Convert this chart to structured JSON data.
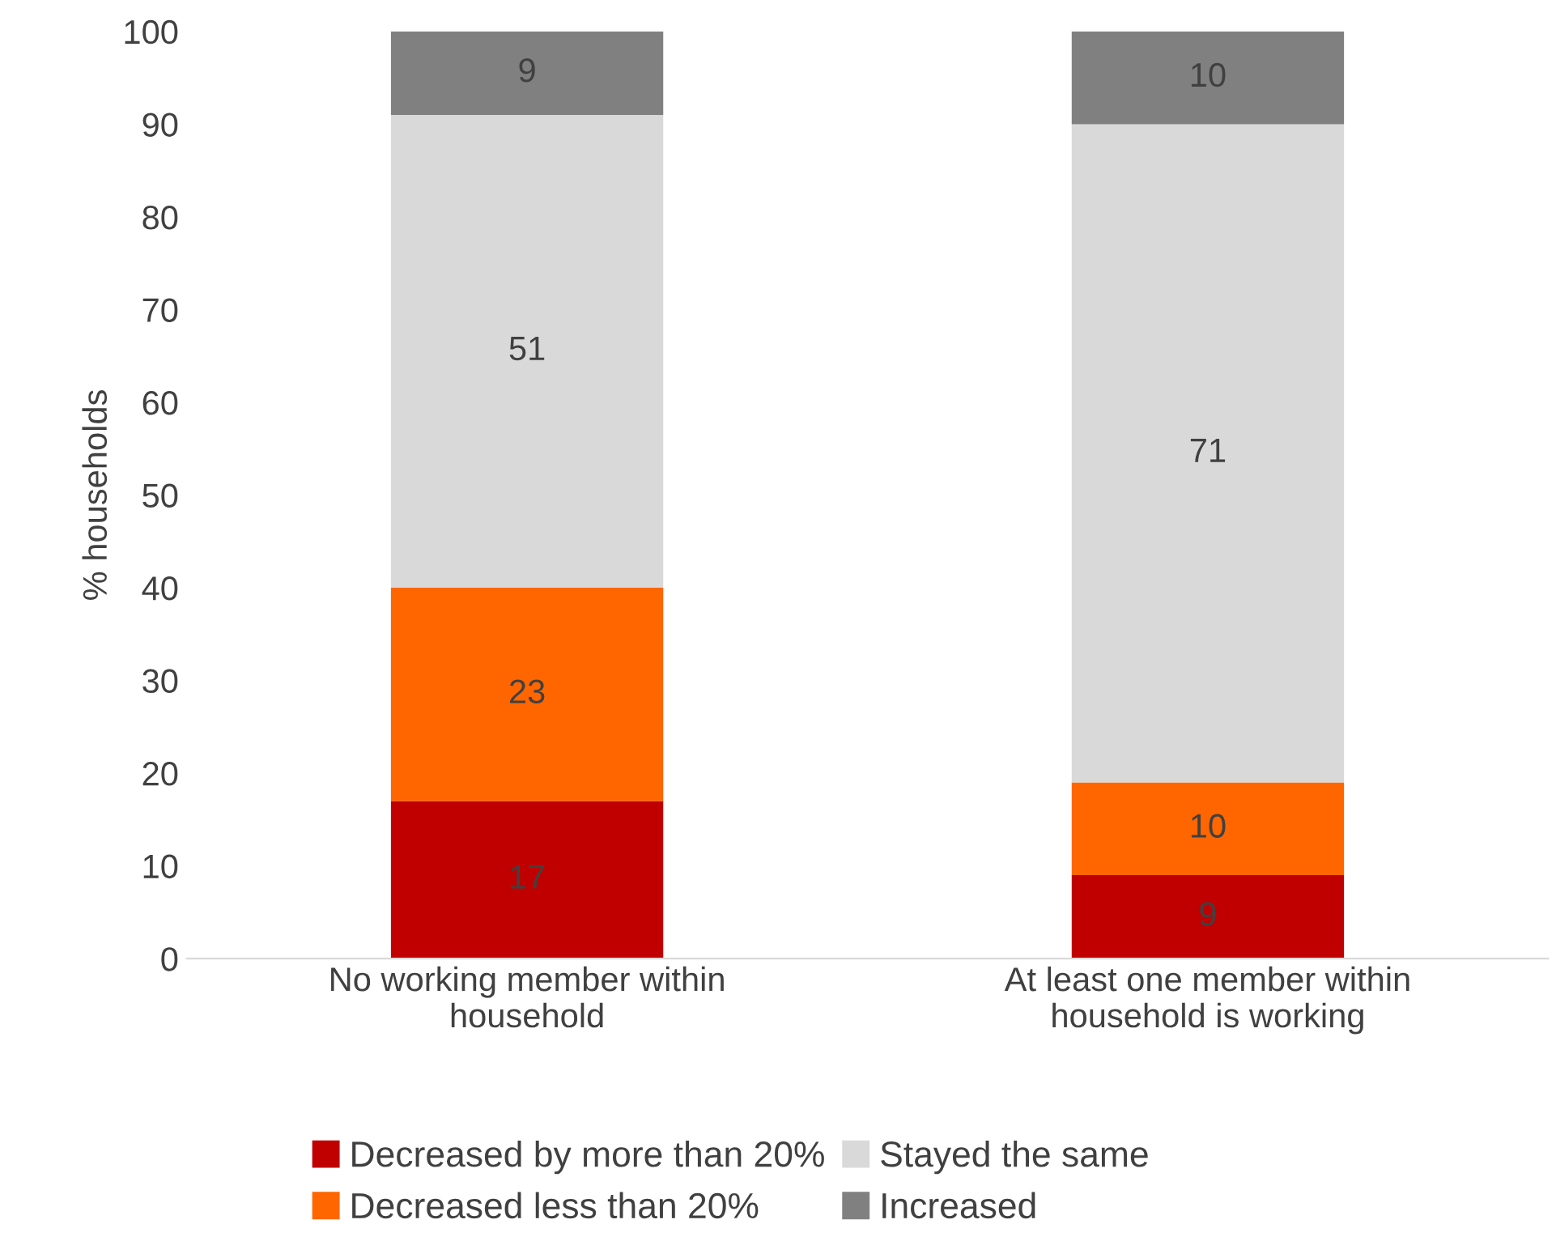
{
  "chart_data": {
    "type": "bar",
    "stacked": true,
    "ylabel": "% households",
    "categories": [
      "No working member within\nhousehold",
      "At least one member within\nhousehold is working"
    ],
    "series": [
      {
        "name": "Decreased by more than 20%",
        "color": "#c00000",
        "values": [
          17,
          9
        ]
      },
      {
        "name": "Decreased less than 20%",
        "color": "#ff6600",
        "values": [
          23,
          10
        ]
      },
      {
        "name": "Stayed the same",
        "color": "#d9d9d9",
        "values": [
          51,
          71
        ]
      },
      {
        "name": "Increased",
        "color": "#808080",
        "values": [
          9,
          10
        ]
      }
    ],
    "ylim": [
      0,
      100
    ],
    "yticks": [
      0,
      10,
      20,
      30,
      40,
      50,
      60,
      70,
      80,
      90,
      100
    ],
    "data_labels": true,
    "grid": false,
    "legend": "bottom"
  }
}
